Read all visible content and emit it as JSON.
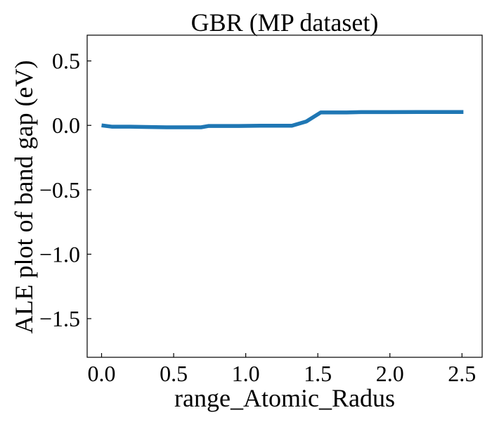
{
  "chart_data": {
    "type": "line",
    "title": "GBR (MP dataset)",
    "xlabel": "range_Atomic_Radus",
    "ylabel": "ALE plot of band gap (eV)",
    "xlim": [
      -0.1,
      2.64
    ],
    "ylim": [
      -1.8,
      0.7
    ],
    "xticks": [
      0.0,
      0.5,
      1.0,
      1.5,
      2.0,
      2.5
    ],
    "xtick_labels": [
      "0.0",
      "0.5",
      "1.0",
      "1.5",
      "2.0",
      "2.5"
    ],
    "yticks": [
      0.5,
      0.0,
      -0.5,
      -1.0,
      -1.5
    ],
    "ytick_labels": [
      "0.5",
      "0.0",
      "−0.5",
      "−1.0",
      "−1.5"
    ],
    "grid": false,
    "series": [
      {
        "color": "#1f77b4",
        "x": [
          0.0,
          0.07,
          0.2,
          0.3,
          0.45,
          0.6,
          0.69,
          0.74,
          0.95,
          1.1,
          1.32,
          1.42,
          1.52,
          1.7,
          1.8,
          2.0,
          2.2,
          2.51
        ],
        "y": [
          0.0,
          -0.01,
          -0.01,
          -0.012,
          -0.015,
          -0.015,
          -0.015,
          -0.005,
          -0.005,
          -0.003,
          -0.003,
          0.03,
          0.1,
          0.1,
          0.103,
          0.103,
          0.104,
          0.104
        ]
      }
    ]
  }
}
